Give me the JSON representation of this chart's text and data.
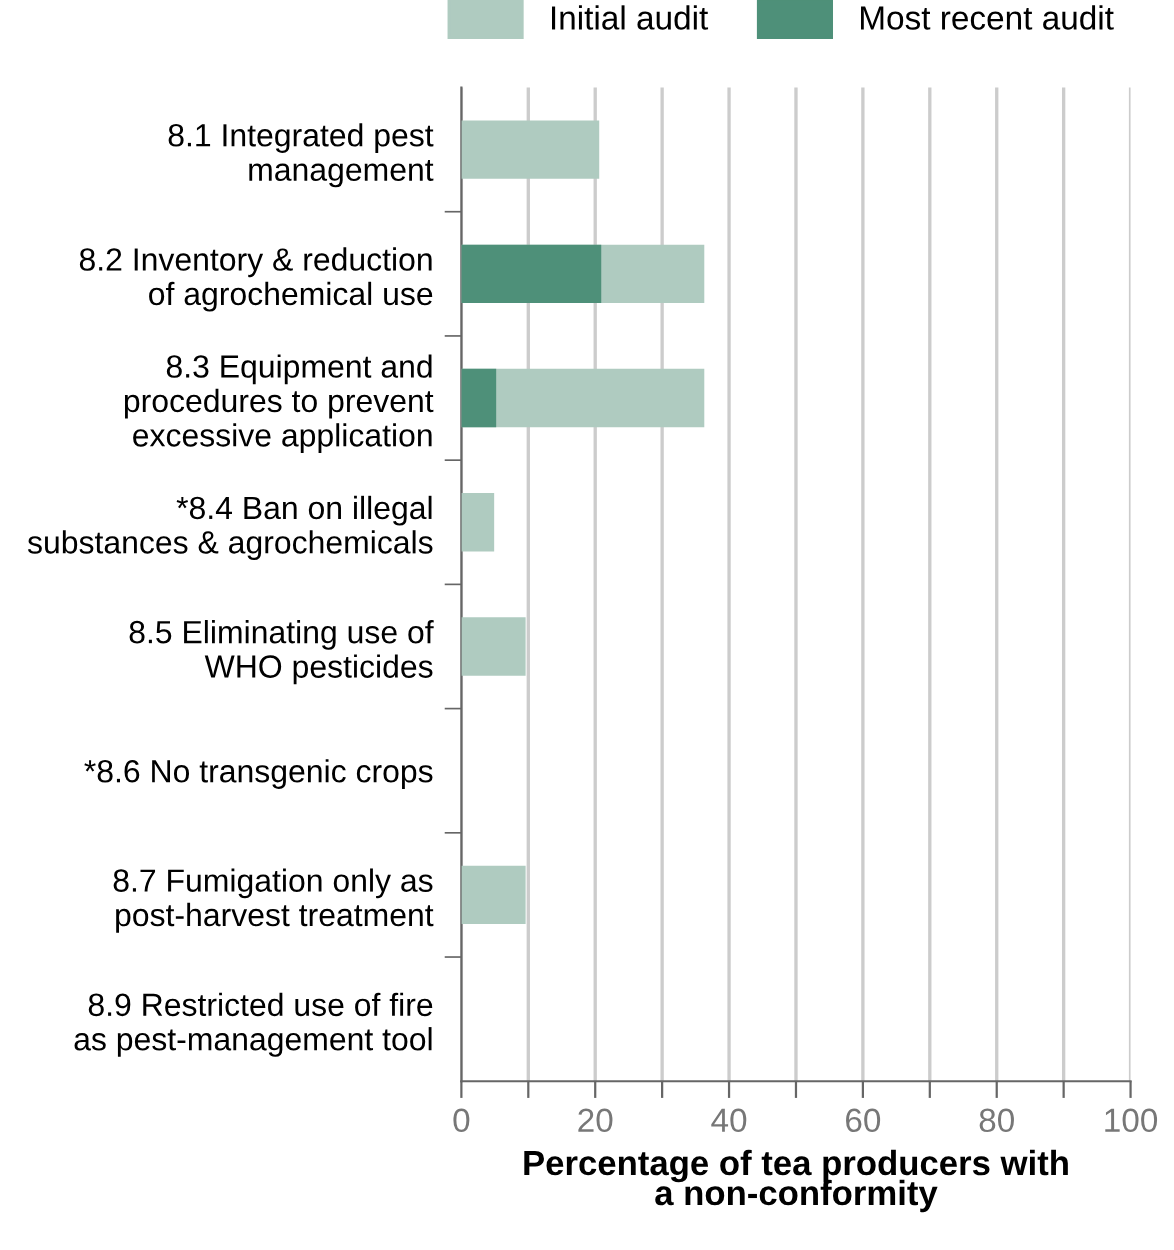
{
  "chart_data": {
    "type": "bar",
    "orientation": "horizontal",
    "xlabel": "Percentage of tea producers with\na non-conformity",
    "categories": [
      "8.1 Integrated pest\nmanagement",
      "8.2 Inventory & reduction\nof agrochemical use",
      "8.3 Equipment and\nprocedures to prevent\nexcessive application",
      "*8.4 Ban on illegal\nsubstances & agrochemicals",
      "8.5 Eliminating use of\nWHO pesticides",
      "*8.6 No transgenic crops",
      "8.7 Fumigation only as\npost-harvest treatment",
      "8.9 Restricted use of fire\nas pest-management tool"
    ],
    "series": [
      {
        "name": "Initial audit",
        "color": "#afcbc0",
        "values": [
          20.6,
          36.3,
          36.3,
          4.9,
          9.6,
          0,
          9.6,
          0
        ]
      },
      {
        "name": "Most recent audit",
        "color": "#4e9079",
        "values": [
          0,
          20.9,
          5.2,
          0,
          0,
          0,
          0,
          0
        ]
      }
    ],
    "xlim": [
      0,
      100
    ],
    "xticks": [
      0,
      {
        "value": 10,
        "label": null
      },
      20,
      {
        "value": 30,
        "label": null
      },
      40,
      {
        "value": 50,
        "label": null
      },
      60,
      {
        "value": 70,
        "label": null
      },
      80,
      {
        "value": 90,
        "label": null
      },
      100
    ],
    "grid": "x",
    "legend": "top right"
  }
}
